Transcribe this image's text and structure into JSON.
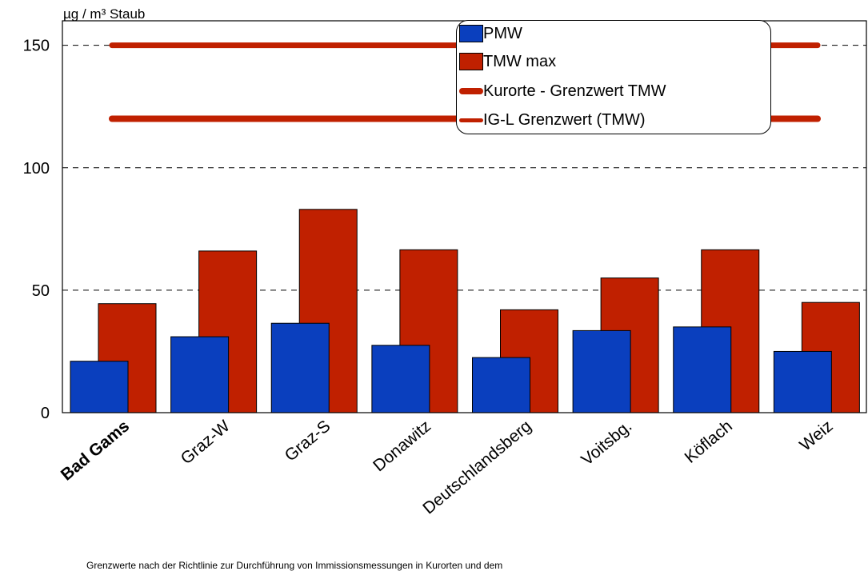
{
  "chart_data": {
    "type": "bar",
    "ylabel": "µg / m³ Staub",
    "ylim": [
      0,
      160
    ],
    "yticks": [
      0,
      50,
      100,
      150
    ],
    "grid": true,
    "legend_placement": "top-right",
    "categories": [
      "Bad Gams",
      "Graz-W",
      "Graz-S",
      "Donawitz",
      "Deutschlandsberg",
      "Voitsbg.",
      "Köflach",
      "Weiz"
    ],
    "bold_categories": [
      "Bad Gams"
    ],
    "series": [
      {
        "name": "PMW",
        "color": "#0a3fbe",
        "values": [
          21,
          31,
          36.5,
          27.5,
          22.5,
          33.5,
          35,
          25
        ]
      },
      {
        "name": "TMW max",
        "color": "#c02000",
        "values": [
          44.5,
          66,
          83,
          66.5,
          42,
          55,
          66.5,
          45
        ]
      }
    ],
    "reference_lines": [
      {
        "name": "Kurorte - Grenzwert TMW",
        "value": 120,
        "color": "#c02000"
      },
      {
        "name": "IG-L Grenzwert (TMW)",
        "value": 150,
        "color": "#c02000"
      }
    ],
    "footnote": "Grenzwerte nach der Richtlinie zur Durchführung von Immissionsmessungen in Kurorten und dem"
  }
}
